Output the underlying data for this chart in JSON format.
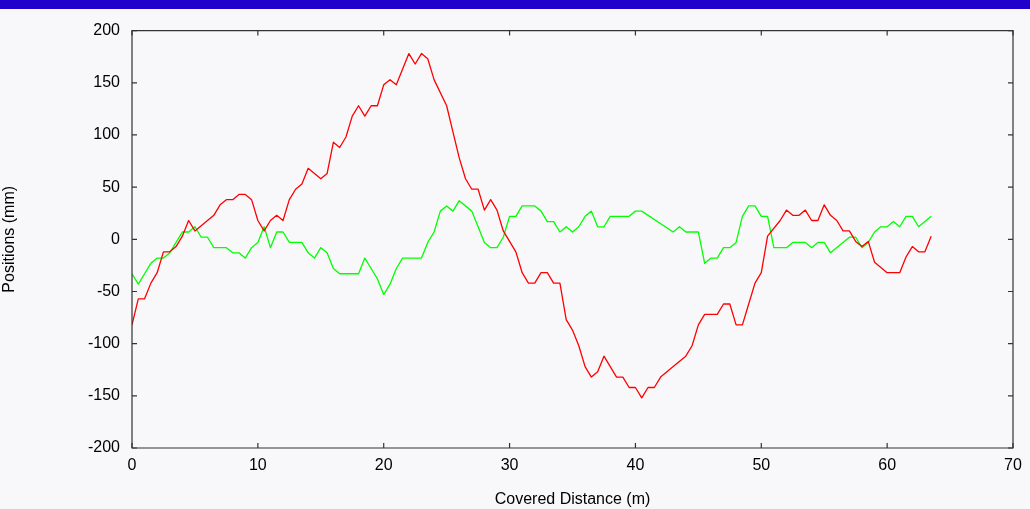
{
  "chart_data": {
    "type": "line",
    "xlabel": "Covered Distance (m)",
    "ylabel": "Positions (mm)",
    "xlim": [
      0,
      70
    ],
    "xticks": [
      0,
      10,
      20,
      30,
      40,
      50,
      60,
      70
    ],
    "ylim": [
      -200,
      200
    ],
    "yticks": [
      -200,
      -150,
      -100,
      -50,
      0,
      50,
      100,
      150,
      200
    ],
    "grid": false,
    "legend": false,
    "marker": "none",
    "line_style": "solid",
    "series": [
      {
        "color": "#ff0000",
        "x": [
          0,
          0.5,
          1,
          1.5,
          2,
          2.5,
          3,
          3.5,
          4,
          4.5,
          5,
          6,
          6.5,
          7,
          7.5,
          8,
          8.5,
          9,
          9.5,
          10,
          10.5,
          11,
          11.5,
          12,
          12.5,
          13,
          13.5,
          14,
          15,
          15.5,
          16,
          16.5,
          17,
          17.5,
          18,
          18.5,
          19,
          19.5,
          20,
          20.5,
          21,
          22,
          22.5,
          23,
          23.5,
          24,
          25,
          25.5,
          26,
          26.5,
          27,
          27.5,
          28,
          28.5,
          29,
          29.5,
          30,
          30.5,
          31,
          31.5,
          32,
          32.5,
          33,
          33.5,
          34,
          34.5,
          35,
          35.5,
          36,
          36.5,
          37,
          37.5,
          38,
          38.5,
          39,
          39.5,
          40,
          40.5,
          41,
          41.5,
          42,
          43,
          44,
          44.5,
          45,
          45.5,
          46,
          46.5,
          47,
          47.5,
          48,
          48.5,
          49,
          49.5,
          50,
          50.5,
          51.5,
          52,
          52.5,
          53,
          53.5,
          54,
          54.5,
          55,
          55.5,
          56,
          56.5,
          57,
          57.5,
          58,
          58.5,
          59,
          60,
          61,
          61.5,
          62,
          62.5,
          63,
          63.5
        ],
        "values": [
          -82,
          -57,
          -57,
          -42,
          -32,
          -12,
          -12,
          -7,
          3,
          18,
          8,
          18,
          23,
          33,
          38,
          38,
          43,
          43,
          38,
          18,
          8,
          18,
          23,
          18,
          38,
          48,
          53,
          68,
          58,
          63,
          93,
          88,
          98,
          118,
          128,
          118,
          128,
          128,
          148,
          153,
          148,
          178,
          168,
          178,
          173,
          153,
          128,
          103,
          78,
          58,
          48,
          48,
          28,
          38,
          28,
          8,
          -2,
          -12,
          -32,
          -42,
          -42,
          -32,
          -32,
          -42,
          -42,
          -77,
          -87,
          -102,
          -122,
          -132,
          -127,
          -112,
          -122,
          -132,
          -132,
          -142,
          -142,
          -152,
          -142,
          -142,
          -132,
          -122,
          -112,
          -102,
          -82,
          -72,
          -72,
          -72,
          -62,
          -62,
          -82,
          -82,
          -62,
          -42,
          -32,
          3,
          18,
          28,
          23,
          23,
          28,
          18,
          18,
          33,
          23,
          18,
          8,
          8,
          -2,
          -7,
          -2,
          -22,
          -32,
          -32,
          -17,
          -7,
          -12,
          -12,
          3
        ]
      },
      {
        "color": "#00ff00",
        "x": [
          0,
          0.5,
          1,
          1.5,
          2,
          2.5,
          3,
          3.5,
          4,
          4.5,
          5,
          5.5,
          6,
          6.5,
          7,
          7.5,
          8,
          8.5,
          9,
          9.5,
          10,
          10.5,
          11,
          11.5,
          12,
          12.5,
          13,
          13.5,
          14,
          14.5,
          15,
          15.5,
          16,
          16.5,
          17,
          18,
          18.5,
          19,
          19.5,
          20,
          20.5,
          21,
          21.5,
          22,
          23,
          23.5,
          24,
          24.5,
          25,
          25.5,
          26,
          27,
          27.5,
          28,
          28.5,
          29,
          29.5,
          30,
          30.5,
          31,
          31.5,
          32,
          32.5,
          33,
          33.5,
          34,
          34.5,
          35,
          35.5,
          36,
          36.5,
          37,
          37.5,
          38,
          39,
          39.5,
          40,
          40.5,
          43,
          43.5,
          44,
          45,
          45.5,
          46,
          46.5,
          47,
          47.5,
          48,
          48.5,
          49,
          49.5,
          50,
          50.5,
          51,
          52,
          52.5,
          53,
          53.5,
          54,
          54.5,
          55,
          55.5,
          57,
          57.5,
          58,
          58.5,
          59,
          59.5,
          60,
          60.5,
          61,
          61.5,
          62,
          62.5,
          63,
          63.5
        ],
        "values": [
          -33,
          -43,
          -33,
          -23,
          -18,
          -18,
          -13,
          -3,
          7,
          7,
          12,
          2,
          2,
          -8,
          -8,
          -8,
          -13,
          -13,
          -18,
          -8,
          -3,
          12,
          -8,
          7,
          7,
          -3,
          -3,
          -3,
          -13,
          -18,
          -8,
          -13,
          -28,
          -33,
          -33,
          -33,
          -18,
          -28,
          -38,
          -53,
          -43,
          -28,
          -18,
          -18,
          -18,
          -3,
          7,
          27,
          32,
          27,
          37,
          27,
          12,
          -3,
          -8,
          -8,
          2,
          22,
          22,
          32,
          32,
          32,
          27,
          17,
          17,
          7,
          12,
          7,
          12,
          22,
          27,
          12,
          12,
          22,
          22,
          22,
          27,
          27,
          7,
          12,
          7,
          7,
          -23,
          -18,
          -18,
          -8,
          -8,
          -3,
          22,
          32,
          32,
          22,
          22,
          -8,
          -8,
          -3,
          -3,
          -3,
          -8,
          -3,
          -3,
          -13,
          2,
          2,
          -8,
          -3,
          7,
          12,
          12,
          17,
          12,
          22,
          22,
          12,
          17,
          22
        ]
      }
    ]
  }
}
